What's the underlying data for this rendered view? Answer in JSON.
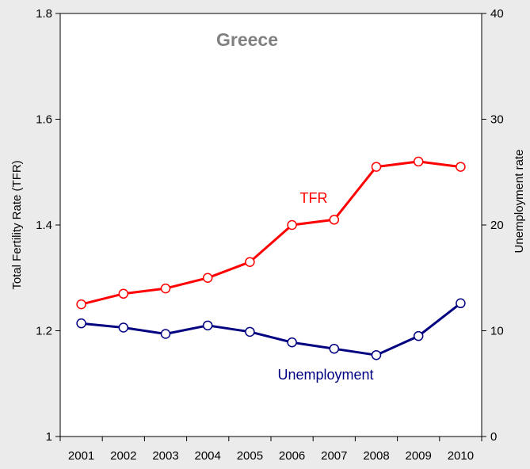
{
  "chart_data": {
    "type": "line",
    "title": "Greece",
    "categories": [
      "2001",
      "2002",
      "2003",
      "2004",
      "2005",
      "2006",
      "2007",
      "2008",
      "2009",
      "2010"
    ],
    "left_axis": {
      "label": "Total Fertility Rate (TFR)",
      "range": [
        1,
        1.8
      ],
      "ticks": [
        1,
        1.2,
        1.4,
        1.6,
        1.8
      ],
      "tick_labels": [
        "1",
        "1.2",
        "1.4",
        "1.6",
        "1.8"
      ]
    },
    "right_axis": {
      "label": "Unemployment rate",
      "range": [
        0,
        40
      ],
      "ticks": [
        0,
        10,
        20,
        30,
        40
      ],
      "tick_labels": [
        "0",
        "10",
        "20",
        "30",
        "40"
      ]
    },
    "grid": false,
    "series": [
      {
        "name": "TFR",
        "axis": "left",
        "color": "#ff0000",
        "values": [
          1.25,
          1.27,
          1.28,
          1.3,
          1.33,
          1.4,
          1.41,
          1.51,
          1.52,
          1.51
        ]
      },
      {
        "name": "Unemployment",
        "axis": "right",
        "color": "#000080",
        "values": [
          10.7,
          10.3,
          9.7,
          10.5,
          9.9,
          8.9,
          8.3,
          7.7,
          9.5,
          12.6
        ]
      }
    ]
  }
}
